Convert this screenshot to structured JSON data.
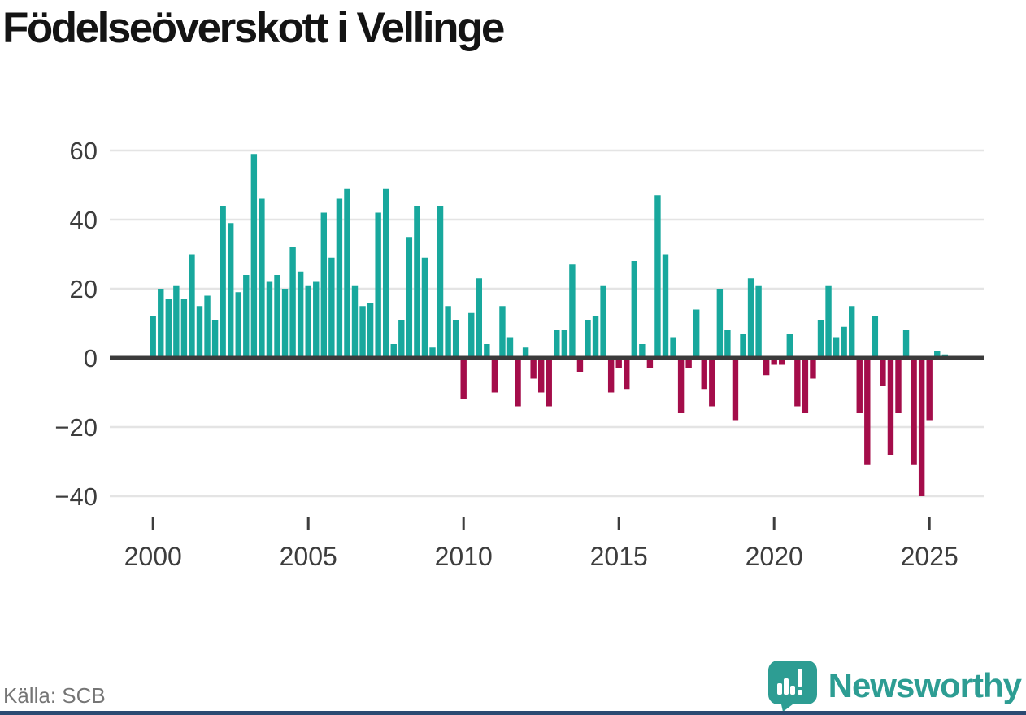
{
  "title": "Födelseöverskott i Vellinge",
  "source": "Källa: SCB",
  "branding": {
    "name": "Newsworthy"
  },
  "colors": {
    "positive": "#18a89d",
    "negative": "#a40d4a",
    "baseline": "#3b3b3b",
    "gridline": "#e4e4e4",
    "axis_text": "#3d3d3d",
    "title_text": "#141414",
    "source_text": "#757575",
    "brand_teal": "#2d9d93",
    "footer_bar": "#2b4a72",
    "logo_glyph": "#ffffff"
  },
  "chart_data": {
    "type": "bar",
    "title": "Födelseöverskott i Vellinge",
    "period": "quarterly",
    "start": "2000Q1",
    "end": "2025Q3",
    "grid": true,
    "legend": false,
    "ylim": [
      -45,
      65
    ],
    "y_ticks": [
      60,
      40,
      20,
      0,
      -20,
      -40
    ],
    "y_tick_labels": [
      "60",
      "40",
      "20",
      "0",
      "−20",
      "−40"
    ],
    "x_tick_years": [
      2000,
      2005,
      2010,
      2015,
      2020,
      2025
    ],
    "x_tick_labels": [
      "2000",
      "2005",
      "2010",
      "2015",
      "2020",
      "2025"
    ],
    "values": [
      12,
      20,
      17,
      21,
      17,
      30,
      15,
      18,
      11,
      44,
      39,
      19,
      24,
      59,
      46,
      22,
      24,
      20,
      32,
      25,
      21,
      22,
      42,
      29,
      46,
      49,
      21,
      15,
      16,
      42,
      49,
      4,
      11,
      35,
      44,
      29,
      3,
      44,
      15,
      11,
      -12,
      13,
      23,
      4,
      -10,
      15,
      6,
      -14,
      3,
      -6,
      -10,
      -14,
      8,
      8,
      27,
      -4,
      11,
      12,
      21,
      -10,
      -3,
      -9,
      28,
      4,
      -3,
      47,
      30,
      6,
      -16,
      -3,
      14,
      -9,
      -14,
      20,
      8,
      -18,
      7,
      23,
      21,
      -5,
      -2,
      -2,
      7,
      -14,
      -16,
      -6,
      11,
      21,
      6,
      9,
      15,
      -16,
      -31,
      12,
      -8,
      -28,
      -16,
      8,
      -31,
      -40,
      -18,
      2,
      1
    ]
  }
}
